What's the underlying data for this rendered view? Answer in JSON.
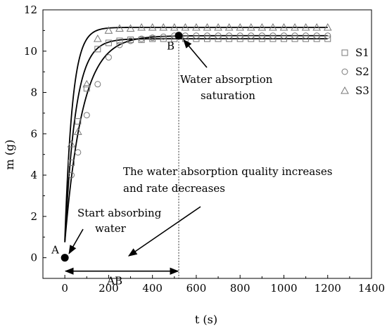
{
  "chart_data": {
    "type": "scatter",
    "title": "",
    "xlabel": "t (s)",
    "ylabel": "m (g)",
    "xlim": [
      -100,
      1400
    ],
    "ylim": [
      -1,
      12
    ],
    "xticks": [
      0,
      200,
      400,
      600,
      800,
      1000,
      1200,
      1400
    ],
    "yticks": [
      0,
      2,
      4,
      6,
      8,
      10,
      12
    ],
    "grid": false,
    "legend_position": "right",
    "marker_x": [
      30,
      60,
      100,
      150,
      200,
      250,
      300,
      350,
      400,
      450,
      500,
      550,
      600,
      650,
      700,
      750,
      800,
      850,
      900,
      950,
      1000,
      1050,
      1100,
      1150,
      1200
    ],
    "series": [
      {
        "name": "S1",
        "marker": "square",
        "values": [
          4.6,
          6.6,
          8.2,
          10.1,
          10.4,
          10.5,
          10.55,
          10.55,
          10.6,
          10.6,
          10.6,
          10.6,
          10.6,
          10.6,
          10.6,
          10.6,
          10.6,
          10.6,
          10.6,
          10.6,
          10.6,
          10.6,
          10.6,
          10.6,
          10.6
        ],
        "fit": {
          "a": 10.6,
          "b": 9.85,
          "k": 0.0205
        }
      },
      {
        "name": "S2",
        "marker": "circle",
        "values": [
          4.0,
          5.1,
          6.9,
          8.4,
          9.7,
          10.3,
          10.5,
          10.6,
          10.65,
          10.7,
          10.75,
          10.75,
          10.75,
          10.75,
          10.75,
          10.75,
          10.75,
          10.75,
          10.75,
          10.75,
          10.75,
          10.75,
          10.75,
          10.75,
          10.75
        ],
        "fit": {
          "a": 10.75,
          "b": 10.0,
          "k": 0.0125
        }
      },
      {
        "name": "S3",
        "marker": "triangle",
        "values": [
          5.5,
          6.1,
          8.4,
          10.6,
          11.0,
          11.1,
          11.1,
          11.15,
          11.15,
          11.15,
          11.15,
          11.15,
          11.15,
          11.15,
          11.15,
          11.15,
          11.15,
          11.15,
          11.15,
          11.15,
          11.15,
          11.15,
          11.15,
          11.15,
          11.15
        ],
        "fit": {
          "a": 11.15,
          "b": 10.3,
          "k": 0.029
        }
      }
    ],
    "points": [
      {
        "label": "A",
        "x": 0,
        "y": 0
      },
      {
        "label": "B",
        "x": 520,
        "y": 10.75
      }
    ],
    "guide_x": 520,
    "interval": {
      "label": "AB",
      "x_start": 0,
      "x_end": 520,
      "y": -0.65
    },
    "annotations": {
      "start": [
        "Start absorbing",
        "water"
      ],
      "saturation": [
        "Water absorption",
        "saturation"
      ],
      "quality": [
        "The water absorption quality increases",
        "and rate decreases"
      ]
    }
  }
}
